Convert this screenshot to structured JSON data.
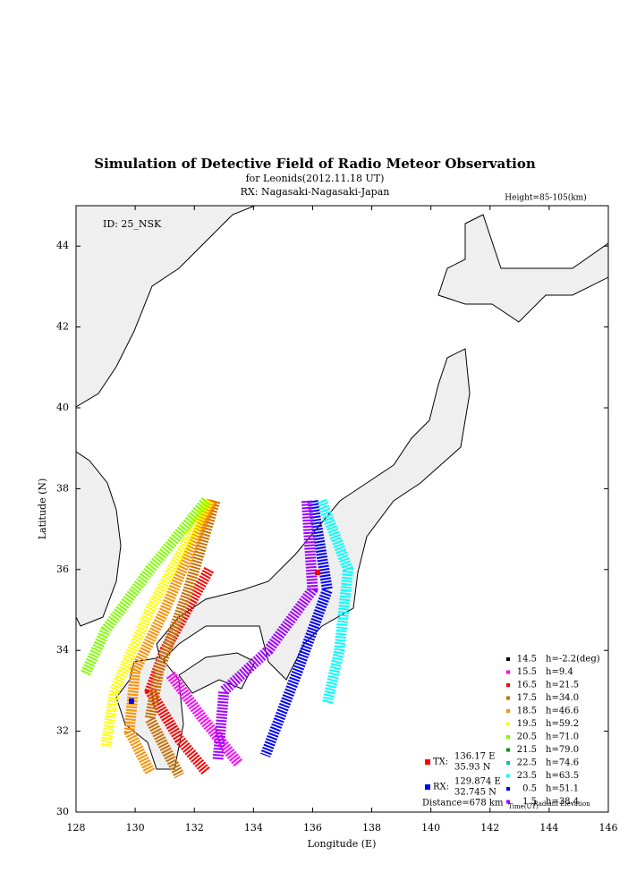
{
  "chart_data": {
    "type": "map-scatter",
    "title": "Simulation of Detective Field of Radio Meteor Observation",
    "subtitle": "for Leonids(2012.11.18 UT)",
    "receiver": "RX: Nagasaki-Nagasaki-Japan",
    "height_note": "Height=85-105(km)",
    "id_note": "ID: 25_NSK",
    "xlabel": "Longitude (E)",
    "ylabel": "Latitude (N)",
    "xlim": [
      128,
      146
    ],
    "ylim": [
      30,
      45
    ],
    "xticks": [
      128,
      130,
      132,
      134,
      136,
      138,
      140,
      142,
      144,
      146
    ],
    "yticks": [
      30,
      32,
      34,
      36,
      38,
      40,
      42,
      44
    ],
    "legend_time_label": "Time(UT)",
    "legend_elev_label": "Radiant Elevation",
    "series": [
      {
        "name": "14.5",
        "h": "h=-2.2(deg)",
        "color": "#000000",
        "x": [],
        "y": []
      },
      {
        "name": "15.5",
        "h": "h=9.4",
        "color": "#ff00ff",
        "x": [
          131.2,
          132.3,
          133.5
        ],
        "y": [
          33.4,
          32.3,
          31.2
        ]
      },
      {
        "name": "16.5",
        "h": "h=21.5",
        "color": "#ff0000",
        "x": [
          132.5,
          131,
          130.5,
          131.5,
          132.4
        ],
        "y": [
          36,
          34,
          33,
          31.8,
          31
        ]
      },
      {
        "name": "17.5",
        "h": "h=34.0",
        "color": "#c87000",
        "x": [
          132.7,
          131.8,
          130.8,
          130.5,
          131.5
        ],
        "y": [
          37.7,
          35.5,
          33.5,
          32.3,
          30.9
        ]
      },
      {
        "name": "18.5",
        "h": "h=46.6",
        "color": "#ff9000",
        "x": [
          132.6,
          131,
          130,
          129.8,
          130.5
        ],
        "y": [
          37.7,
          35,
          33.5,
          32,
          31
        ]
      },
      {
        "name": "19.5",
        "h": "h=59.2",
        "color": "#ffff00",
        "x": [
          132.5,
          130.5,
          129.3,
          129
        ],
        "y": [
          37.7,
          35,
          33,
          31.6
        ]
      },
      {
        "name": "20.5",
        "h": "h=71.0",
        "color": "#80ff00",
        "x": [
          132.4,
          130.5,
          129,
          128.3
        ],
        "y": [
          37.7,
          36,
          34.5,
          33.4
        ]
      },
      {
        "name": "21.5",
        "h": "h=79.0",
        "color": "#009000",
        "x": [],
        "y": []
      },
      {
        "name": "22.5",
        "h": "h=74.6",
        "color": "#00c8a0",
        "x": [],
        "y": []
      },
      {
        "name": "23.5",
        "h": "h=63.5",
        "color": "#00ffff",
        "x": [
          136.3,
          137.2,
          136.9,
          136.5
        ],
        "y": [
          37.7,
          36,
          34,
          32.7
        ]
      },
      {
        "name": "0.5",
        "h": "h=51.1",
        "color": "#0000ff",
        "x": [
          136,
          136.5,
          135.5,
          134.4
        ],
        "y": [
          37.7,
          35.5,
          33.5,
          31.4
        ]
      },
      {
        "name": "1.5",
        "h": "h=38.4",
        "color": "#a000ff",
        "x": [
          135.8,
          136,
          134.5,
          133,
          132.8
        ],
        "y": [
          37.7,
          35.5,
          34,
          33,
          31.3
        ]
      }
    ],
    "stations": [
      {
        "name": "TX:",
        "lon": 136.17,
        "lat": 35.93,
        "lon_label": "136.17 E",
        "lat_label": "35.93 N",
        "color": "#ff0000"
      },
      {
        "name": "RX:",
        "lon": 129.874,
        "lat": 32.745,
        "lon_label": "129.874 E",
        "lat_label": "32.745 N",
        "color": "#0000ff"
      }
    ],
    "distance": "Distance=678 km"
  }
}
